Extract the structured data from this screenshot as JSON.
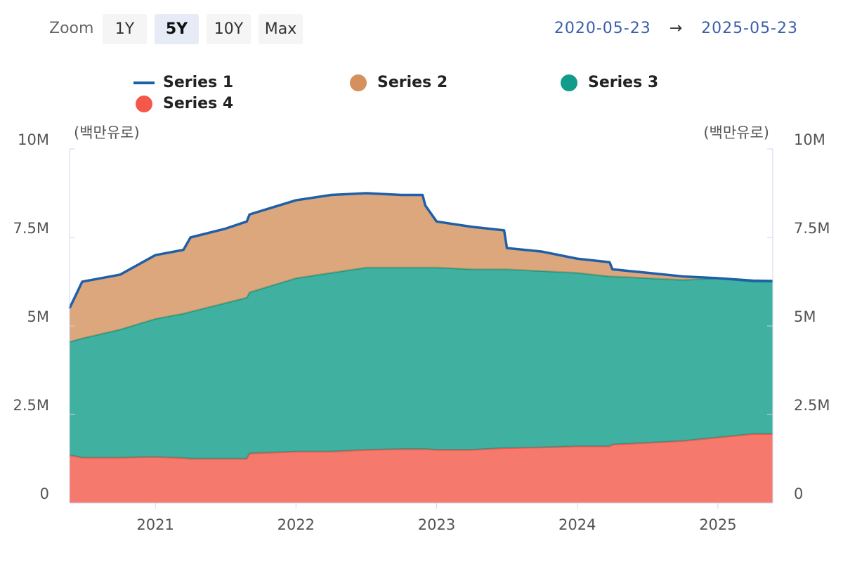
{
  "zoom": {
    "label": "Zoom",
    "options": [
      "1Y",
      "5Y",
      "10Y",
      "Max"
    ],
    "selected": "5Y"
  },
  "range": {
    "start": "2020-05-23",
    "arrow": "→",
    "end": "2025-05-23"
  },
  "chart_data": {
    "type": "area",
    "stacked": true,
    "y_label": "(백만유로)",
    "y2_label": "(백만유로)",
    "x": [
      2020.39,
      2020.48,
      2020.75,
      2021.0,
      2021.2,
      2021.25,
      2021.5,
      2021.65,
      2021.67,
      2022.0,
      2022.25,
      2022.5,
      2022.75,
      2022.9,
      2022.92,
      2023.0,
      2023.25,
      2023.48,
      2023.5,
      2023.75,
      2024.0,
      2024.23,
      2024.25,
      2024.5,
      2024.75,
      2025.0,
      2025.25,
      2025.39
    ],
    "xlim": [
      2020.39,
      2025.39
    ],
    "xticks": [
      2021,
      2022,
      2023,
      2024,
      2025
    ],
    "ylim": [
      0,
      10
    ],
    "yticks": [
      0,
      {
        "value": 2.5,
        "label": "2.5M"
      },
      {
        "value": 5,
        "label": "5M"
      },
      {
        "value": 7.5,
        "label": "7.5M"
      },
      {
        "value": 10,
        "label": "10M"
      }
    ],
    "y2lim": [
      0,
      10
    ],
    "y2ticks": [
      0,
      {
        "value": 2.5,
        "label": "2.5M"
      },
      {
        "value": 5,
        "label": "5M"
      },
      {
        "value": 7.5,
        "label": "7.5M"
      },
      {
        "value": 10,
        "label": "10M"
      }
    ],
    "series": [
      {
        "name": "Series 1",
        "type": "line",
        "color": "#1f5fa8",
        "values": [
          5.5,
          6.25,
          6.45,
          7.0,
          7.15,
          7.5,
          7.75,
          7.95,
          8.15,
          8.55,
          8.7,
          8.75,
          8.7,
          8.7,
          8.4,
          7.95,
          7.8,
          7.7,
          7.2,
          7.1,
          6.9,
          6.8,
          6.6,
          6.5,
          6.4,
          6.35,
          6.28,
          6.27
        ]
      },
      {
        "name": "Series 2",
        "type": "area",
        "color": "#d4915d",
        "values": [
          0.95,
          1.6,
          1.55,
          1.8,
          1.8,
          2.1,
          2.1,
          2.15,
          2.2,
          2.2,
          2.2,
          2.1,
          2.05,
          2.05,
          1.75,
          1.3,
          1.2,
          1.1,
          0.6,
          0.55,
          0.4,
          0.4,
          0.2,
          0.15,
          0.1,
          0,
          0.03,
          0.02
        ]
      },
      {
        "name": "Series 3",
        "type": "area",
        "color": "#109c8a",
        "values": [
          3.2,
          3.37,
          3.62,
          3.9,
          4.08,
          4.15,
          4.4,
          4.55,
          4.55,
          4.9,
          5.05,
          5.15,
          5.13,
          5.13,
          5.13,
          5.15,
          5.1,
          5.05,
          5.05,
          4.98,
          4.9,
          4.8,
          4.75,
          4.65,
          4.55,
          4.5,
          4.3,
          4.3
        ]
      },
      {
        "name": "Series 4",
        "type": "area",
        "color": "#f4584a",
        "values": [
          1.35,
          1.28,
          1.28,
          1.3,
          1.27,
          1.25,
          1.25,
          1.25,
          1.4,
          1.45,
          1.45,
          1.5,
          1.52,
          1.52,
          1.52,
          1.5,
          1.5,
          1.55,
          1.55,
          1.57,
          1.6,
          1.6,
          1.65,
          1.7,
          1.75,
          1.85,
          1.95,
          1.95
        ]
      }
    ]
  }
}
